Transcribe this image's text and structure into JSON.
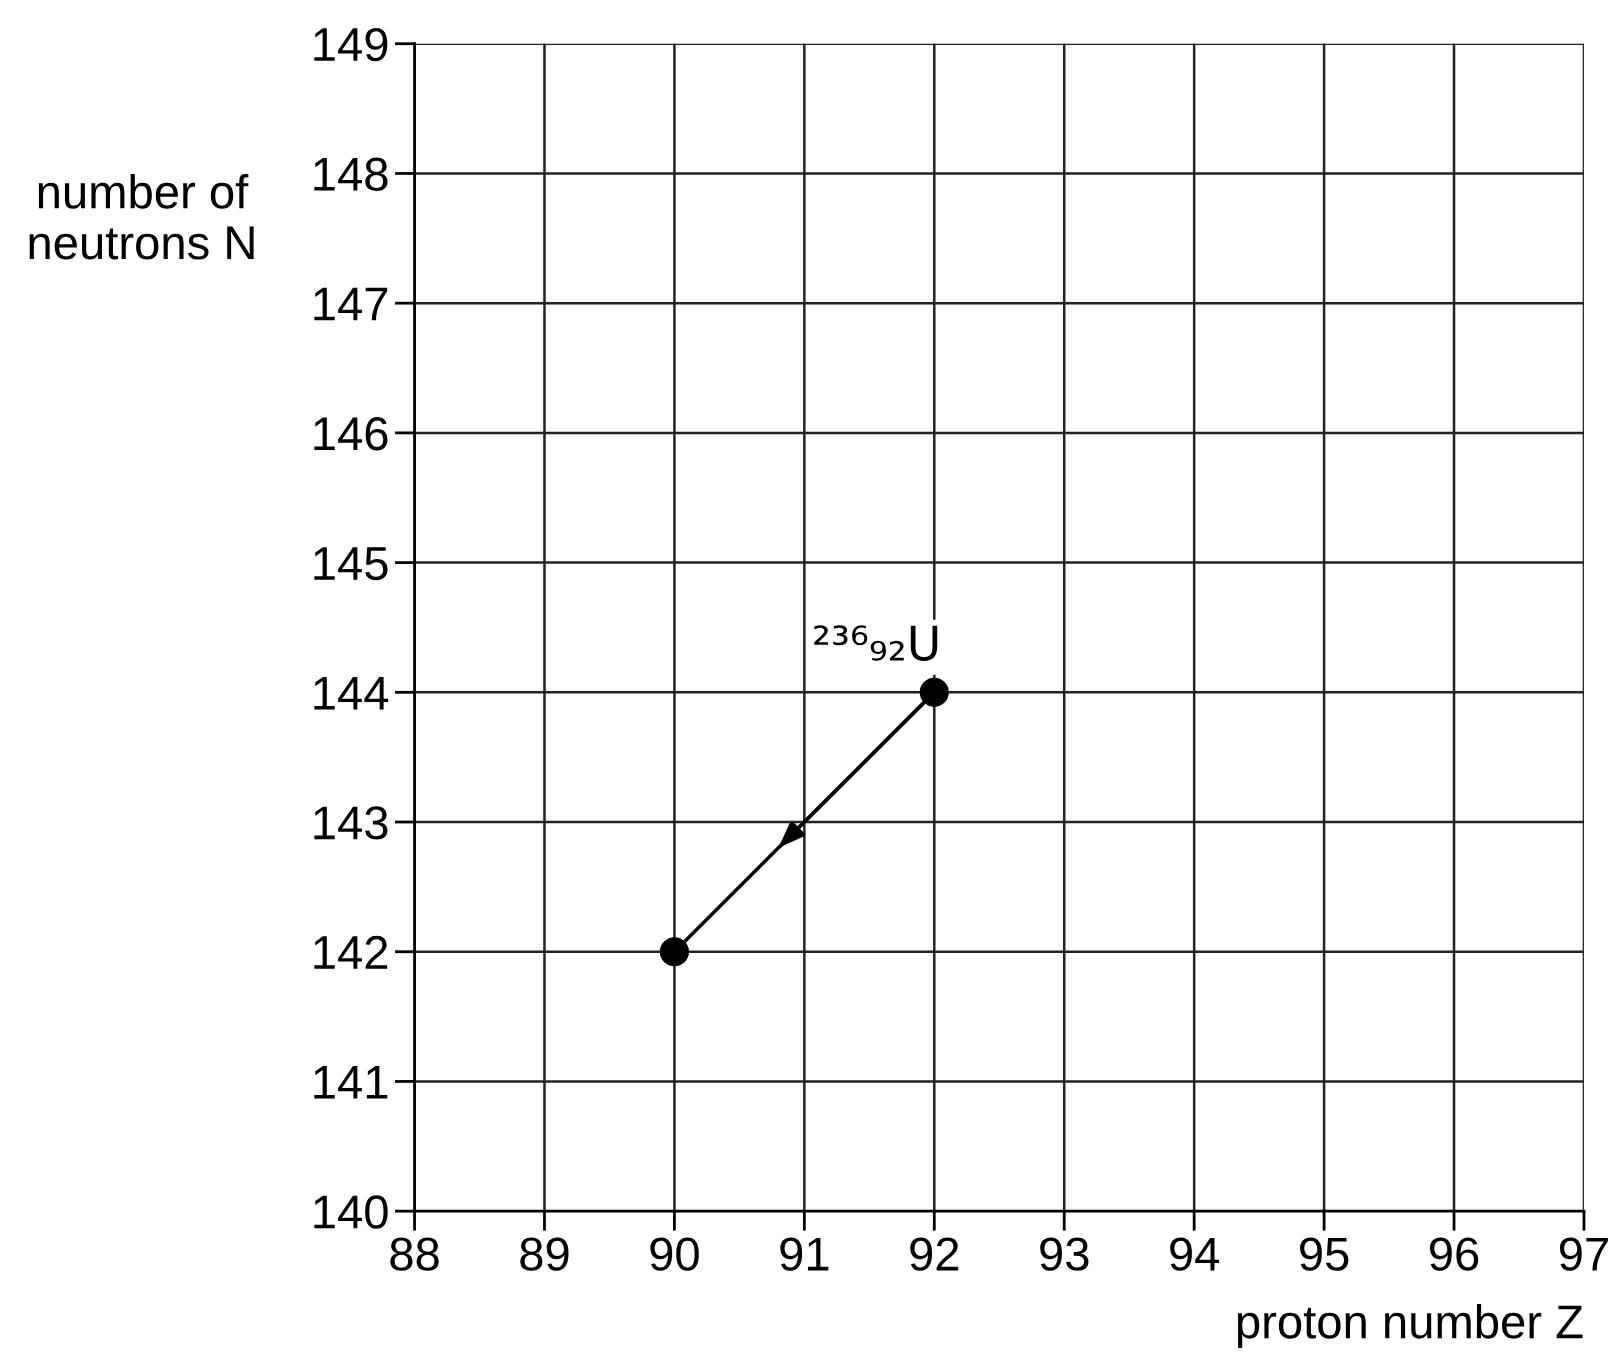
{
  "chart_data": {
    "type": "line",
    "xlabel": "proton number Z",
    "ylabel": "number of\nneutrons N",
    "series": [
      {
        "x": [
          92,
          90
        ],
        "values": [
          144,
          142
        ],
        "color": "#000000"
      }
    ],
    "marker": "circle",
    "line_style": "solid",
    "xlim": [
      88,
      97
    ],
    "ylim": [
      140,
      149
    ],
    "xticks": [
      88,
      89,
      90,
      91,
      92,
      93,
      94,
      95,
      96,
      97
    ],
    "yticks": [
      140,
      141,
      142,
      143,
      144,
      145,
      146,
      147,
      148,
      149
    ],
    "grid": true,
    "legend": false,
    "annotations": [
      {
        "text": "²³⁶₉₂U",
        "x": 92,
        "y": 144
      }
    ]
  }
}
